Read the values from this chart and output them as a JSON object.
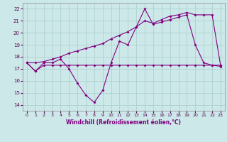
{
  "xlabel": "Windchill (Refroidissement éolien,°C)",
  "xlim": [
    -0.5,
    23.5
  ],
  "ylim": [
    13.5,
    22.5
  ],
  "yticks": [
    14,
    15,
    16,
    17,
    18,
    19,
    20,
    21,
    22
  ],
  "xticks": [
    0,
    1,
    2,
    3,
    4,
    5,
    6,
    7,
    8,
    9,
    10,
    11,
    12,
    13,
    14,
    15,
    16,
    17,
    18,
    19,
    20,
    21,
    22,
    23
  ],
  "bg_color": "#cce8e8",
  "grid_color": "#aacccc",
  "line_color": "#800080",
  "flat_x": [
    0,
    1,
    2,
    3,
    4,
    5,
    6,
    7,
    8,
    9,
    10,
    11,
    12,
    13,
    14,
    15,
    16,
    17,
    18,
    19,
    20,
    21,
    22,
    23
  ],
  "flat_y": [
    17.5,
    16.8,
    17.3,
    17.3,
    17.3,
    17.3,
    17.3,
    17.3,
    17.3,
    17.3,
    17.3,
    17.3,
    17.3,
    17.3,
    17.3,
    17.3,
    17.3,
    17.3,
    17.3,
    17.3,
    17.3,
    17.3,
    17.3,
    17.3
  ],
  "wavy_x": [
    0,
    1,
    2,
    3,
    4,
    5,
    6,
    7,
    8,
    9,
    10,
    11,
    12,
    13,
    14,
    15,
    16,
    17,
    18,
    19,
    20,
    21,
    22,
    23
  ],
  "wavy_y": [
    17.5,
    16.8,
    17.5,
    17.5,
    17.8,
    17.0,
    15.8,
    14.8,
    14.2,
    15.2,
    17.5,
    19.3,
    19.0,
    20.5,
    22.0,
    20.7,
    20.9,
    21.1,
    21.3,
    21.5,
    19.0,
    17.5,
    17.3,
    17.2
  ],
  "trend_x": [
    0,
    1,
    2,
    3,
    4,
    5,
    6,
    7,
    8,
    9,
    10,
    11,
    12,
    13,
    14,
    15,
    16,
    17,
    18,
    19,
    20,
    21,
    22,
    23
  ],
  "trend_y": [
    17.5,
    17.5,
    17.6,
    17.8,
    18.0,
    18.3,
    18.5,
    18.7,
    18.9,
    19.1,
    19.5,
    19.8,
    20.1,
    20.5,
    21.0,
    20.8,
    21.1,
    21.4,
    21.5,
    21.7,
    21.5,
    21.5,
    21.5,
    17.3
  ]
}
